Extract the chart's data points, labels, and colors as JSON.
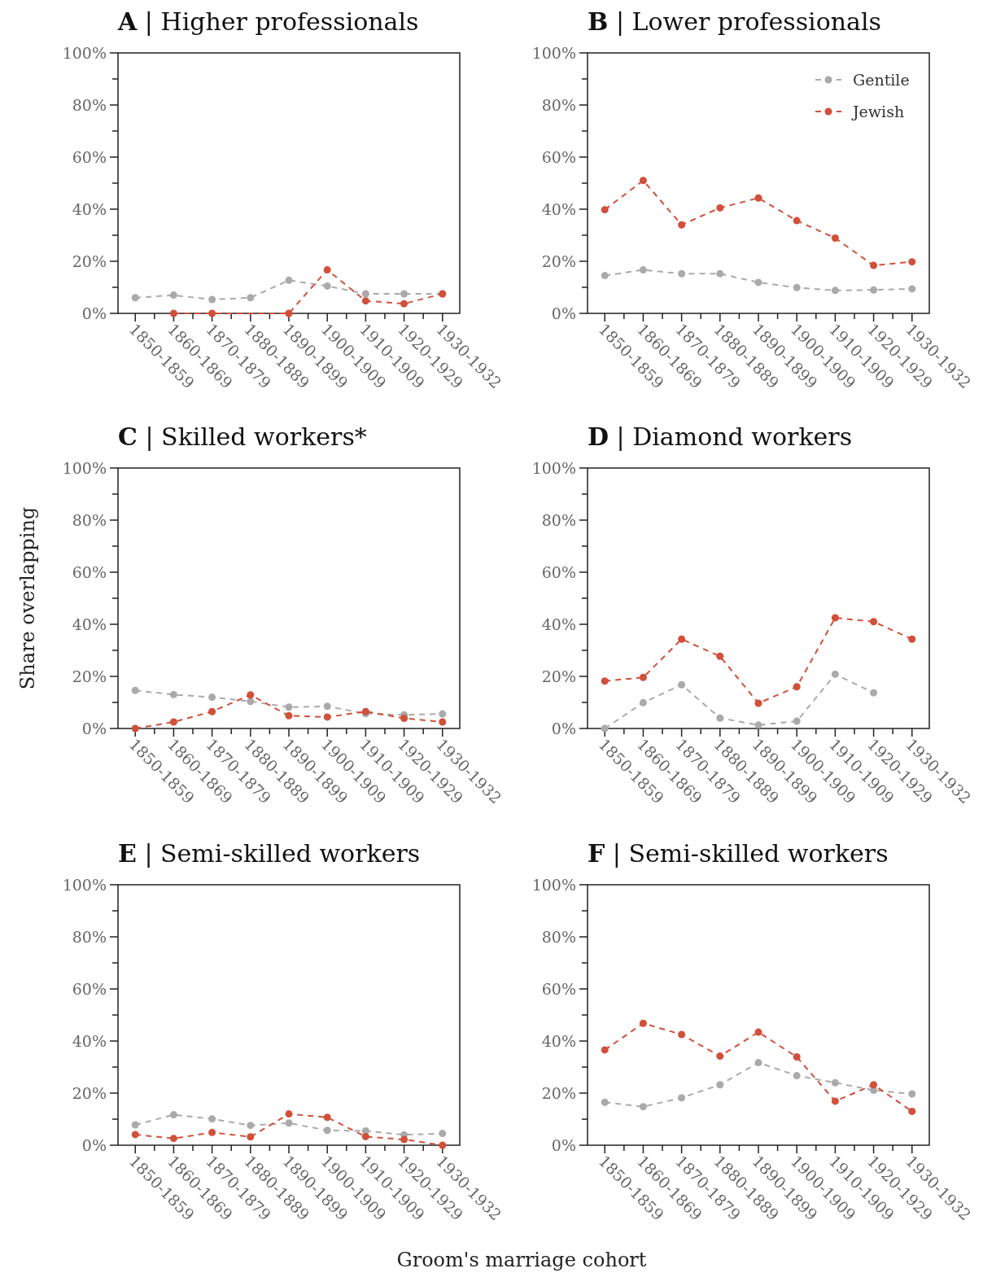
{
  "chart_data": [
    {
      "type": "line",
      "title": "A | Higher professionals",
      "categories": [
        "1850-1859",
        "1860-1869",
        "1870-1879",
        "1880-1889",
        "1890-1899",
        "1900-1909",
        "1910-1909",
        "1920-1929",
        "1930-1932"
      ],
      "ylim": [
        0,
        100
      ],
      "yticks": [
        {
          "value": 0,
          "label": "0%"
        },
        {
          "value": 10,
          "label": null
        },
        {
          "value": 20,
          "label": "20%"
        },
        {
          "value": 30,
          "label": null
        },
        {
          "value": 40,
          "label": "40%"
        },
        {
          "value": 50,
          "label": null
        },
        {
          "value": 60,
          "label": "60%"
        },
        {
          "value": 70,
          "label": null
        },
        {
          "value": 80,
          "label": "80%"
        },
        {
          "value": 90,
          "label": null
        },
        {
          "value": 100,
          "label": "100%"
        }
      ],
      "marker": "circle",
      "line_style": "dashed",
      "grid": false,
      "legend": false,
      "series": [
        {
          "color": "#aaaaaa",
          "values": [
            6,
            7,
            5.3,
            6,
            12.7,
            10.5,
            7.5,
            7.5,
            7.5
          ]
        },
        {
          "color": "#d1503a",
          "values": [
            null,
            0,
            0,
            null,
            0,
            16.7,
            4.8,
            3.7,
            7.5
          ]
        }
      ]
    },
    {
      "type": "line",
      "title": "B | Lower professionals",
      "categories": [
        "1850-1859",
        "1860-1869",
        "1870-1879",
        "1880-1889",
        "1890-1899",
        "1900-1909",
        "1910-1909",
        "1920-1929",
        "1930-1932"
      ],
      "ylim": [
        0,
        100
      ],
      "yticks": [
        {
          "value": 0,
          "label": "0%"
        },
        {
          "value": 10,
          "label": null
        },
        {
          "value": 20,
          "label": "20%"
        },
        {
          "value": 30,
          "label": null
        },
        {
          "value": 40,
          "label": "40%"
        },
        {
          "value": 50,
          "label": null
        },
        {
          "value": 60,
          "label": "60%"
        },
        {
          "value": 70,
          "label": null
        },
        {
          "value": 80,
          "label": "80%"
        },
        {
          "value": 90,
          "label": null
        },
        {
          "value": 100,
          "label": "100%"
        }
      ],
      "marker": "circle",
      "line_style": "dashed",
      "grid": false,
      "legend": "top right",
      "series": [
        {
          "name": "Gentile",
          "color": "#aaaaaa",
          "values": [
            14.5,
            16.7,
            15.2,
            15.2,
            11.9,
            9.9,
            8.8,
            9,
            9.4
          ]
        },
        {
          "name": "Jewish",
          "color": "#d1503a",
          "values": [
            39.8,
            51,
            34,
            40.5,
            44.3,
            35.6,
            28.9,
            18.4,
            19.8
          ]
        }
      ]
    },
    {
      "type": "line",
      "title": "C | Skilled workers*",
      "ylabel": "Share overlapping",
      "categories": [
        "1850-1859",
        "1860-1869",
        "1870-1879",
        "1880-1889",
        "1890-1899",
        "1900-1909",
        "1910-1909",
        "1920-1929",
        "1930-1932"
      ],
      "ylim": [
        0,
        100
      ],
      "yticks": [
        {
          "value": 0,
          "label": "0%"
        },
        {
          "value": 10,
          "label": null
        },
        {
          "value": 20,
          "label": "20%"
        },
        {
          "value": 30,
          "label": null
        },
        {
          "value": 40,
          "label": "40%"
        },
        {
          "value": 50,
          "label": null
        },
        {
          "value": 60,
          "label": "60%"
        },
        {
          "value": 70,
          "label": null
        },
        {
          "value": 80,
          "label": "80%"
        },
        {
          "value": 90,
          "label": null
        },
        {
          "value": 100,
          "label": "100%"
        }
      ],
      "marker": "circle",
      "line_style": "dashed",
      "grid": false,
      "legend": false,
      "series": [
        {
          "color": "#aaaaaa",
          "values": [
            14.6,
            13,
            12,
            10.4,
            8.2,
            8.5,
            5.7,
            5.2,
            5.6
          ]
        },
        {
          "color": "#d1503a",
          "values": [
            0,
            2.5,
            6.5,
            12.9,
            4.9,
            4.4,
            6.5,
            3.9,
            2.5
          ]
        }
      ]
    },
    {
      "type": "line",
      "title": "D | Diamond workers",
      "categories": [
        "1850-1859",
        "1860-1869",
        "1870-1879",
        "1880-1889",
        "1890-1899",
        "1900-1909",
        "1910-1909",
        "1920-1929",
        "1930-1932"
      ],
      "ylim": [
        0,
        100
      ],
      "yticks": [
        {
          "value": 0,
          "label": "0%"
        },
        {
          "value": 10,
          "label": null
        },
        {
          "value": 20,
          "label": "20%"
        },
        {
          "value": 30,
          "label": null
        },
        {
          "value": 40,
          "label": "40%"
        },
        {
          "value": 50,
          "label": null
        },
        {
          "value": 60,
          "label": "60%"
        },
        {
          "value": 70,
          "label": null
        },
        {
          "value": 80,
          "label": "80%"
        },
        {
          "value": 90,
          "label": null
        },
        {
          "value": 100,
          "label": "100%"
        }
      ],
      "marker": "circle",
      "line_style": "dashed",
      "grid": false,
      "legend": false,
      "series": [
        {
          "color": "#aaaaaa",
          "values": [
            0,
            9.9,
            16.8,
            4,
            1.3,
            2.8,
            20.8,
            13.7,
            null
          ]
        },
        {
          "color": "#d1503a",
          "values": [
            18.2,
            19.6,
            34.3,
            27.7,
            9.7,
            16,
            42.5,
            41,
            34.3
          ]
        }
      ]
    },
    {
      "type": "line",
      "title": "E | Semi-skilled workers",
      "xlabel": "Groom's marriage cohort",
      "categories": [
        "1850-1859",
        "1860-1869",
        "1870-1879",
        "1880-1889",
        "1890-1899",
        "1900-1909",
        "1910-1909",
        "1920-1929",
        "1930-1932"
      ],
      "ylim": [
        0,
        100
      ],
      "yticks": [
        {
          "value": 0,
          "label": "0%"
        },
        {
          "value": 10,
          "label": null
        },
        {
          "value": 20,
          "label": "20%"
        },
        {
          "value": 30,
          "label": null
        },
        {
          "value": 40,
          "label": "40%"
        },
        {
          "value": 50,
          "label": null
        },
        {
          "value": 60,
          "label": "60%"
        },
        {
          "value": 70,
          "label": null
        },
        {
          "value": 80,
          "label": "80%"
        },
        {
          "value": 90,
          "label": null
        },
        {
          "value": 100,
          "label": "100%"
        }
      ],
      "marker": "circle",
      "line_style": "dashed",
      "grid": false,
      "legend": false,
      "series": [
        {
          "color": "#aaaaaa",
          "values": [
            7.8,
            11.7,
            10.1,
            7.6,
            8.5,
            5.7,
            5.5,
            4,
            4.5
          ]
        },
        {
          "color": "#d1503a",
          "values": [
            4.1,
            2.6,
            4.9,
            3.2,
            12,
            10.7,
            3.3,
            2.2,
            0
          ]
        }
      ]
    },
    {
      "type": "line",
      "title": "F | Semi-skilled workers",
      "categories": [
        "1850-1859",
        "1860-1869",
        "1870-1879",
        "1880-1889",
        "1890-1899",
        "1900-1909",
        "1910-1909",
        "1920-1929",
        "1930-1932"
      ],
      "ylim": [
        0,
        100
      ],
      "yticks": [
        {
          "value": 0,
          "label": "0%"
        },
        {
          "value": 10,
          "label": null
        },
        {
          "value": 20,
          "label": "20%"
        },
        {
          "value": 30,
          "label": null
        },
        {
          "value": 40,
          "label": "40%"
        },
        {
          "value": 50,
          "label": null
        },
        {
          "value": 60,
          "label": "60%"
        },
        {
          "value": 70,
          "label": null
        },
        {
          "value": 80,
          "label": "80%"
        },
        {
          "value": 90,
          "label": null
        },
        {
          "value": 100,
          "label": "100%"
        }
      ],
      "marker": "circle",
      "line_style": "dashed",
      "grid": false,
      "legend": false,
      "series": [
        {
          "color": "#aaaaaa",
          "values": [
            16.5,
            14.8,
            18.2,
            23.2,
            31.7,
            26.7,
            24,
            21.1,
            19.7
          ]
        },
        {
          "color": "#d1503a",
          "values": [
            36.6,
            46.8,
            42.5,
            34.2,
            43.4,
            33.9,
            16.9,
            23.2,
            13
          ]
        }
      ]
    }
  ]
}
